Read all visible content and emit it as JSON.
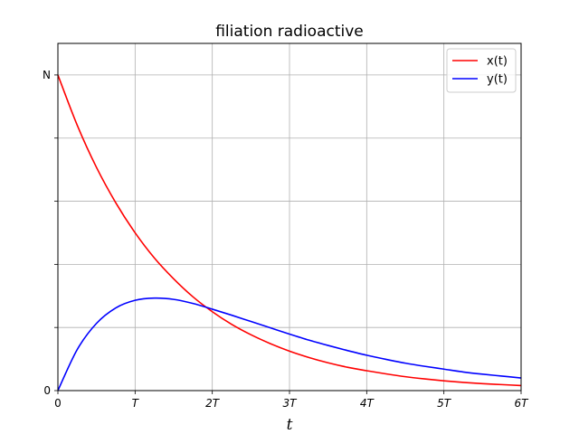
{
  "chart_data": {
    "type": "line",
    "title": "filiation radioactive",
    "xlabel": "t",
    "ylabel": "",
    "xlim": [
      0,
      6
    ],
    "ylim": [
      0,
      1.1
    ],
    "grid": true,
    "legend_position": "top-right",
    "x_ticks": [
      {
        "value": 0,
        "label": "0",
        "italic": false
      },
      {
        "value": 1,
        "label": "T",
        "italic": true
      },
      {
        "value": 2,
        "label": "2T",
        "italic": true
      },
      {
        "value": 3,
        "label": "3T",
        "italic": true
      },
      {
        "value": 4,
        "label": "4T",
        "italic": true
      },
      {
        "value": 5,
        "label": "5T",
        "italic": true
      },
      {
        "value": 6,
        "label": "6T",
        "italic": true
      }
    ],
    "y_ticks": [
      {
        "value": 0,
        "label": "0"
      },
      {
        "value": 0.2,
        "label": ""
      },
      {
        "value": 0.4,
        "label": ""
      },
      {
        "value": 0.6,
        "label": ""
      },
      {
        "value": 0.8,
        "label": ""
      },
      {
        "value": 1.0,
        "label": "N"
      }
    ],
    "x": [
      0,
      0.25,
      0.5,
      0.75,
      1.0,
      1.25,
      1.5,
      1.75,
      2.0,
      2.25,
      2.5,
      2.75,
      3.0,
      3.25,
      3.5,
      3.75,
      4.0,
      4.25,
      4.5,
      4.75,
      5.0,
      5.25,
      5.5,
      5.75,
      6.0
    ],
    "series": [
      {
        "name": "x(t)",
        "color": "#ff0000",
        "values": [
          1.0,
          0.841,
          0.707,
          0.595,
          0.5,
          0.42,
          0.354,
          0.297,
          0.25,
          0.21,
          0.177,
          0.149,
          0.125,
          0.105,
          0.088,
          0.074,
          0.063,
          0.053,
          0.044,
          0.037,
          0.031,
          0.026,
          0.022,
          0.019,
          0.016
        ]
      },
      {
        "name": "y(t)",
        "color": "#0000ff",
        "values": [
          0.0,
          0.13,
          0.213,
          0.262,
          0.286,
          0.293,
          0.289,
          0.276,
          0.258,
          0.239,
          0.219,
          0.199,
          0.179,
          0.16,
          0.143,
          0.127,
          0.112,
          0.099,
          0.087,
          0.077,
          0.068,
          0.059,
          0.052,
          0.046,
          0.04
        ]
      }
    ]
  }
}
